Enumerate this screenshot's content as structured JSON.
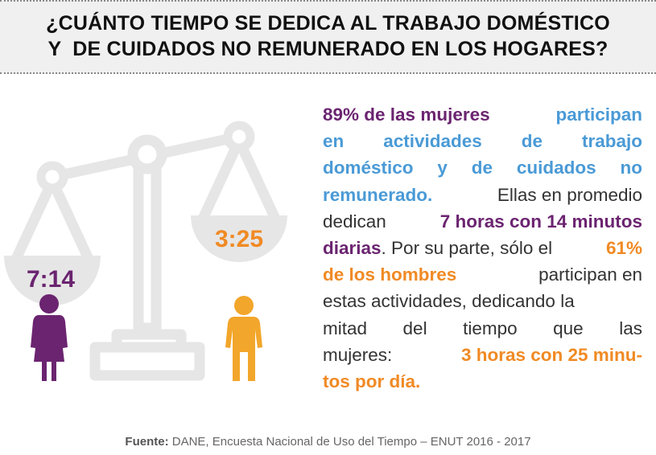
{
  "title": {
    "line1": "¿CUÁNTO TIEMPO SE DEDICA AL TRABAJO DOMÉSTICO",
    "line2": "Y  DE CUIDADOS NO REMUNERADO EN LOS HOGARES?"
  },
  "scale": {
    "women_time": "7:14",
    "men_time": "3:25"
  },
  "colors": {
    "purple": "#6b2470",
    "blue": "#4a9ad6",
    "orange": "#f08a24",
    "yellow": "#f2a62b",
    "gray": "#e6e6e6"
  },
  "icons": [
    "balance-scale-icon",
    "woman-icon",
    "man-icon"
  ],
  "text": {
    "l1a": "89% de las mujeres",
    "l1b": "participan",
    "l2": [
      "en",
      "actividades",
      "de",
      "trabajo"
    ],
    "l3": [
      "doméstico",
      "y",
      "de",
      "cuidados",
      "no"
    ],
    "l4a": "remunerado.",
    "l4b": "Ellas en promedio",
    "l5a": "dedican",
    "l5b": "7 horas con 14 minutos",
    "l6a": "diarias",
    "l6b": ". Por su parte, sólo el",
    "l6c": "61%",
    "l7a": "de los hombres",
    "l7b": "participan en",
    "l8": "estas actividades, dedicando la",
    "l9": [
      "mitad",
      "del",
      "tiempo",
      "que",
      "las"
    ],
    "l10a": "mujeres:",
    "l10b": "3 horas con 25 minu-",
    "l11": "tos por día."
  },
  "footer": {
    "label": "Fuente:",
    "text": " DANE, Encuesta Nacional de Uso del Tiempo – ENUT 2016 - 2017"
  }
}
